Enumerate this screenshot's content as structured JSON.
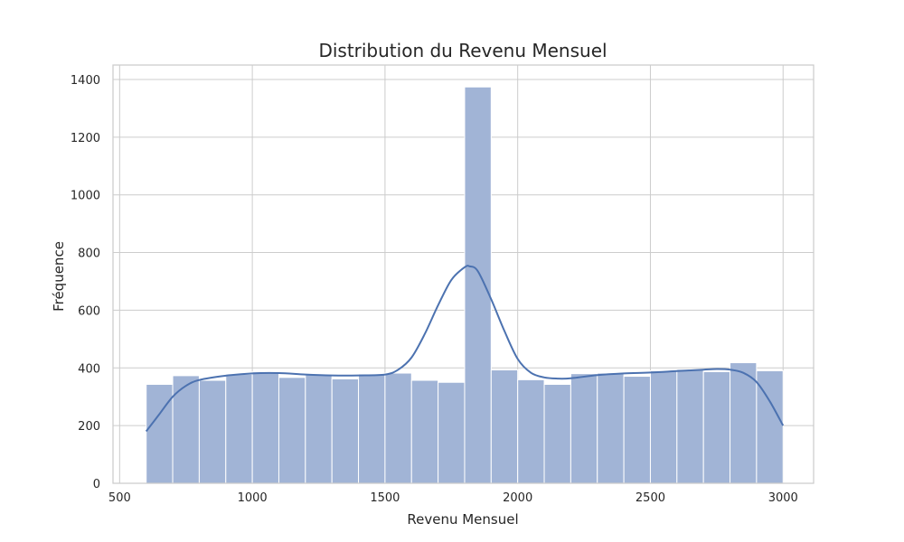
{
  "chart_data": {
    "type": "bar",
    "title": "Distribution du Revenu Mensuel",
    "xlabel": "Revenu Mensuel",
    "ylabel": "Fréquence",
    "xlim": [
      475,
      3115
    ],
    "ylim": [
      0,
      1450
    ],
    "xticks": [
      500,
      1000,
      1500,
      2000,
      2500,
      3000
    ],
    "yticks": [
      0,
      200,
      400,
      600,
      800,
      1000,
      1200,
      1400
    ],
    "grid": true,
    "bin_edges": [
      600,
      700,
      800,
      900,
      1000,
      1100,
      1200,
      1300,
      1400,
      1500,
      1600,
      1700,
      1800,
      1900,
      2000,
      2100,
      2200,
      2300,
      2400,
      2500,
      2600,
      2700,
      2800,
      2900,
      3000
    ],
    "counts": [
      343,
      373,
      357,
      378,
      386,
      367,
      376,
      362,
      379,
      382,
      357,
      350,
      1374,
      393,
      359,
      343,
      380,
      382,
      371,
      390,
      395,
      387,
      418,
      390
    ],
    "kde": {
      "x": [
        600,
        650,
        700,
        750,
        800,
        900,
        1000,
        1100,
        1200,
        1300,
        1400,
        1500,
        1550,
        1600,
        1650,
        1700,
        1750,
        1800,
        1820,
        1850,
        1900,
        1950,
        2000,
        2050,
        2100,
        2150,
        2200,
        2300,
        2400,
        2500,
        2600,
        2700,
        2750,
        2800,
        2850,
        2900,
        2950,
        3000
      ],
      "y": [
        180,
        240,
        300,
        338,
        358,
        373,
        381,
        382,
        377,
        374,
        374,
        377,
        394,
        436,
        518,
        617,
        705,
        749,
        752,
        735,
        638,
        528,
        431,
        383,
        367,
        363,
        364,
        375,
        381,
        384,
        389,
        394,
        396,
        394,
        383,
        351,
        284,
        200
      ]
    },
    "colors": {
      "bar_fill": "#a1b4d6",
      "bar_stroke": "#ffffff",
      "kde_line": "#4c72b0",
      "grid": "#cccccc",
      "frame": "#cccccc"
    }
  }
}
